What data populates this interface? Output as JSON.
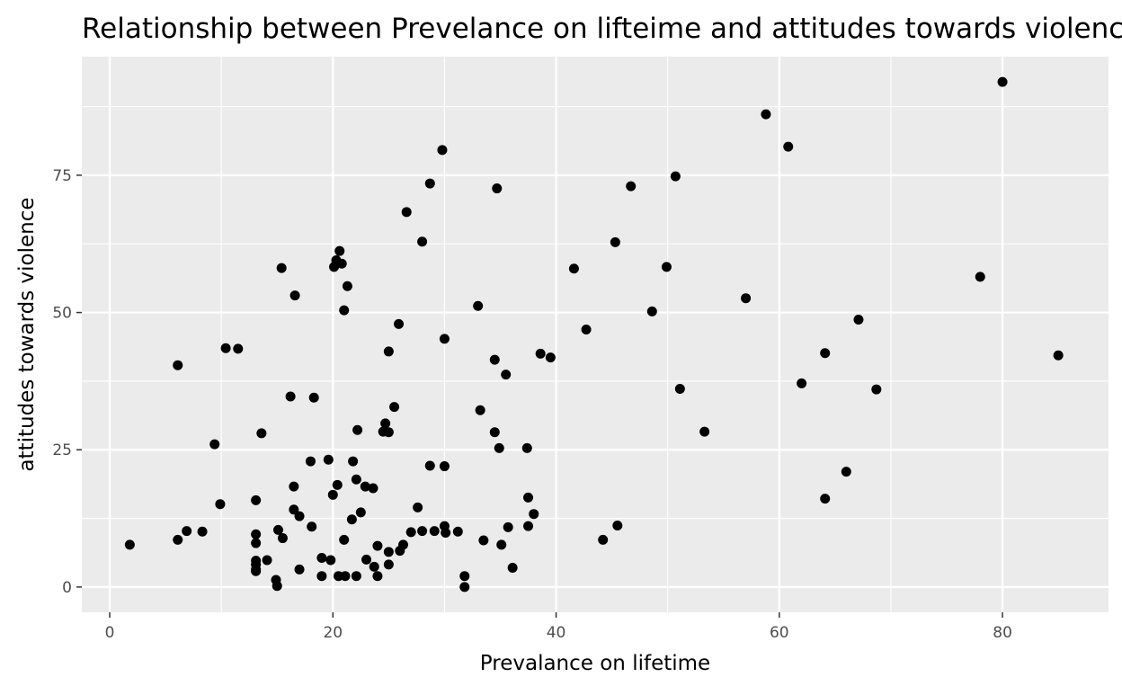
{
  "chart_data": {
    "type": "scatter",
    "title": "Relationship between Prevelance on lifteime and attitudes towards violence",
    "xlabel": "Prevalance on lifetime",
    "ylabel": "attitudes towards violence",
    "xlim": [
      -2.5,
      89.5
    ],
    "ylim": [
      -4.6,
      96.6
    ],
    "x_ticks": [
      0,
      20,
      40,
      60,
      80
    ],
    "x_minor_ticks": [
      10,
      30,
      50,
      70
    ],
    "y_ticks": [
      0,
      25,
      50,
      75
    ],
    "y_minor_ticks": [
      12.5,
      37.5,
      62.5,
      87.5
    ],
    "grid": true,
    "legend": "none",
    "colors": {
      "panel": "#ebebeb",
      "grid": "#ffffff",
      "point": "#000000"
    },
    "points": [
      [
        1.8,
        7.7
      ],
      [
        6.1,
        40.4
      ],
      [
        6.1,
        8.6
      ],
      [
        6.9,
        10.2
      ],
      [
        8.3,
        10.1
      ],
      [
        9.4,
        26.0
      ],
      [
        9.9,
        15.1
      ],
      [
        10.4,
        43.5
      ],
      [
        11.5,
        43.4
      ],
      [
        13.1,
        15.8
      ],
      [
        13.1,
        9.6
      ],
      [
        13.1,
        8.0
      ],
      [
        13.1,
        4.8
      ],
      [
        13.1,
        4.1
      ],
      [
        13.1,
        3.2
      ],
      [
        13.1,
        2.9
      ],
      [
        13.6,
        28.0
      ],
      [
        14.1,
        4.9
      ],
      [
        14.9,
        1.3
      ],
      [
        15.0,
        0.2
      ],
      [
        15.1,
        10.4
      ],
      [
        15.4,
        58.1
      ],
      [
        15.5,
        8.9
      ],
      [
        16.2,
        34.7
      ],
      [
        16.5,
        18.3
      ],
      [
        16.5,
        14.1
      ],
      [
        16.6,
        53.1
      ],
      [
        17.0,
        12.9
      ],
      [
        17.0,
        3.2
      ],
      [
        18.0,
        22.9
      ],
      [
        18.1,
        11.0
      ],
      [
        18.3,
        34.5
      ],
      [
        19.0,
        5.3
      ],
      [
        19.0,
        2.0
      ],
      [
        19.6,
        23.2
      ],
      [
        19.8,
        4.9
      ],
      [
        20.0,
        16.8
      ],
      [
        20.1,
        58.3
      ],
      [
        20.3,
        59.5
      ],
      [
        20.4,
        18.6
      ],
      [
        20.5,
        2.0
      ],
      [
        20.6,
        61.2
      ],
      [
        20.8,
        58.9
      ],
      [
        21.0,
        50.4
      ],
      [
        21.0,
        8.6
      ],
      [
        21.1,
        2.0
      ],
      [
        21.3,
        54.8
      ],
      [
        21.7,
        12.3
      ],
      [
        21.8,
        22.9
      ],
      [
        22.1,
        19.6
      ],
      [
        22.1,
        2.0
      ],
      [
        22.2,
        28.6
      ],
      [
        22.5,
        13.6
      ],
      [
        22.9,
        18.3
      ],
      [
        23.0,
        5.0
      ],
      [
        23.6,
        18.0
      ],
      [
        23.7,
        3.7
      ],
      [
        24.0,
        7.5
      ],
      [
        24.0,
        2.0
      ],
      [
        24.5,
        28.3
      ],
      [
        24.7,
        29.8
      ],
      [
        25.0,
        42.9
      ],
      [
        25.0,
        28.2
      ],
      [
        25.0,
        6.4
      ],
      [
        25.0,
        4.1
      ],
      [
        25.5,
        32.8
      ],
      [
        25.9,
        47.9
      ],
      [
        26.0,
        6.6
      ],
      [
        26.3,
        7.7
      ],
      [
        26.6,
        68.3
      ],
      [
        27.0,
        10.0
      ],
      [
        27.6,
        14.5
      ],
      [
        28.0,
        62.9
      ],
      [
        28.0,
        10.2
      ],
      [
        28.7,
        73.5
      ],
      [
        28.7,
        22.1
      ],
      [
        29.1,
        10.2
      ],
      [
        29.8,
        79.6
      ],
      [
        30.0,
        45.2
      ],
      [
        30.0,
        22.0
      ],
      [
        30.0,
        11.1
      ],
      [
        30.1,
        9.9
      ],
      [
        31.2,
        10.1
      ],
      [
        31.8,
        2.0
      ],
      [
        31.8,
        0.0
      ],
      [
        33.0,
        51.2
      ],
      [
        33.2,
        32.2
      ],
      [
        33.5,
        8.5
      ],
      [
        34.5,
        41.4
      ],
      [
        34.5,
        28.2
      ],
      [
        34.7,
        72.6
      ],
      [
        34.9,
        25.3
      ],
      [
        35.1,
        7.7
      ],
      [
        35.5,
        38.7
      ],
      [
        35.7,
        10.9
      ],
      [
        36.1,
        3.5
      ],
      [
        37.4,
        25.3
      ],
      [
        37.5,
        16.3
      ],
      [
        37.5,
        11.1
      ],
      [
        38.0,
        13.3
      ],
      [
        38.6,
        42.5
      ],
      [
        39.5,
        41.8
      ],
      [
        41.6,
        58.0
      ],
      [
        42.7,
        46.9
      ],
      [
        44.2,
        8.6
      ],
      [
        45.3,
        62.8
      ],
      [
        45.5,
        11.2
      ],
      [
        46.7,
        73.0
      ],
      [
        48.6,
        50.2
      ],
      [
        49.9,
        58.3
      ],
      [
        50.7,
        74.8
      ],
      [
        51.1,
        36.1
      ],
      [
        53.3,
        28.3
      ],
      [
        57.0,
        52.6
      ],
      [
        58.8,
        86.1
      ],
      [
        60.8,
        80.2
      ],
      [
        62.0,
        37.1
      ],
      [
        64.1,
        42.6
      ],
      [
        64.1,
        16.1
      ],
      [
        66.0,
        21.0
      ],
      [
        67.1,
        48.7
      ],
      [
        68.7,
        36.0
      ],
      [
        78.0,
        56.5
      ],
      [
        80.0,
        92.0
      ],
      [
        85.0,
        42.2
      ]
    ]
  }
}
